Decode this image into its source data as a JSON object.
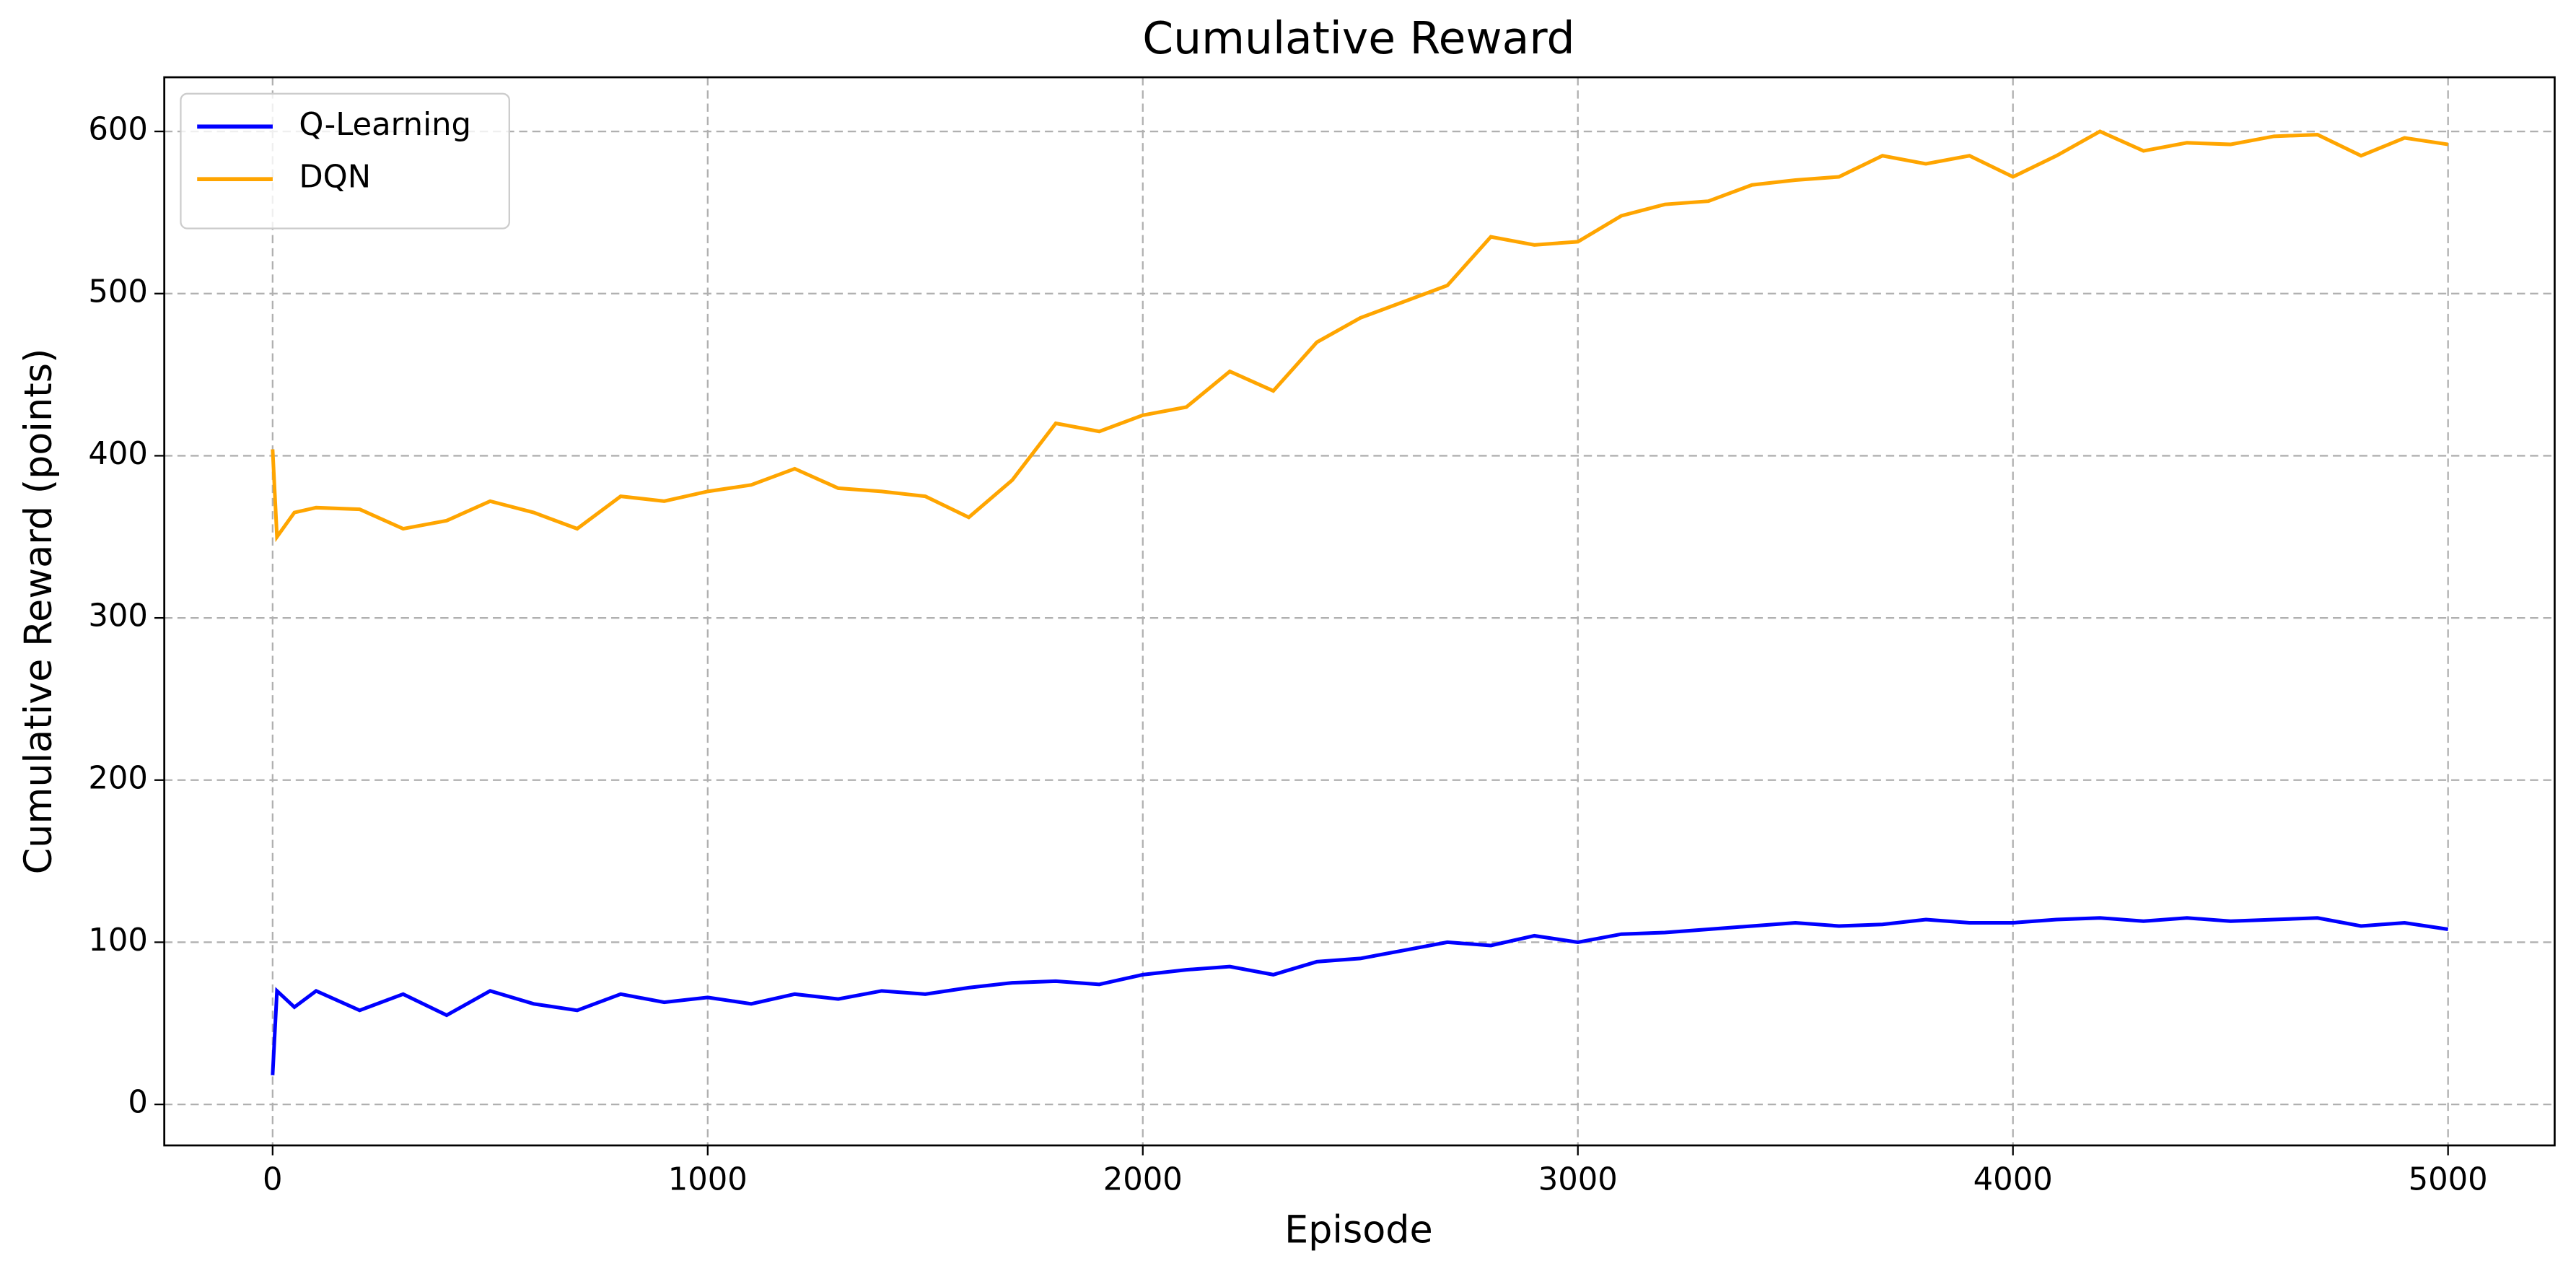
{
  "chart_data": {
    "type": "line",
    "title": "Cumulative Reward",
    "xlabel": "Episode",
    "ylabel": "Cumulative Reward (points)",
    "x": [
      0,
      10,
      50,
      100,
      200,
      300,
      400,
      500,
      600,
      700,
      800,
      900,
      1000,
      1100,
      1200,
      1300,
      1400,
      1500,
      1600,
      1700,
      1800,
      1900,
      2000,
      2100,
      2200,
      2300,
      2400,
      2500,
      2600,
      2700,
      2800,
      2900,
      3000,
      3100,
      3200,
      3300,
      3400,
      3500,
      3600,
      3700,
      3800,
      3900,
      4000,
      4100,
      4200,
      4300,
      4400,
      4500,
      4600,
      4700,
      4800,
      4900,
      5000
    ],
    "series": [
      {
        "name": "Q-Learning",
        "color": "#0000ff",
        "values": [
          18,
          70,
          60,
          70,
          58,
          68,
          55,
          70,
          62,
          58,
          68,
          63,
          66,
          62,
          68,
          65,
          70,
          68,
          72,
          75,
          76,
          74,
          80,
          83,
          85,
          80,
          88,
          90,
          95,
          100,
          98,
          104,
          100,
          105,
          106,
          108,
          110,
          112,
          110,
          111,
          114,
          112,
          112,
          114,
          115,
          113,
          115,
          113,
          114,
          115,
          110,
          112,
          108
        ]
      },
      {
        "name": "DQN",
        "color": "#ffa500",
        "values": [
          404,
          350,
          365,
          368,
          367,
          355,
          360,
          372,
          365,
          355,
          375,
          372,
          378,
          382,
          392,
          380,
          378,
          375,
          362,
          385,
          420,
          415,
          425,
          430,
          452,
          440,
          470,
          485,
          495,
          505,
          535,
          530,
          532,
          548,
          555,
          557,
          567,
          570,
          572,
          585,
          580,
          585,
          572,
          585,
          600,
          588,
          593,
          592,
          597,
          598,
          585,
          596,
          592
        ]
      }
    ],
    "xlim": [
      -249,
      5245
    ],
    "ylim": [
      -25.3,
      633.4
    ],
    "xticks": [
      0,
      1000,
      2000,
      3000,
      4000,
      5000
    ],
    "yticks": [
      0,
      100,
      200,
      300,
      400,
      500,
      600
    ],
    "grid": true,
    "legend": "upper left"
  }
}
